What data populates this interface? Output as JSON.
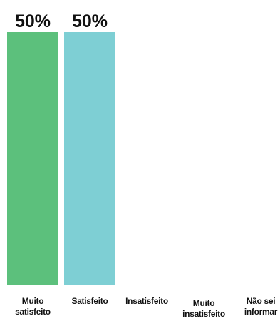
{
  "chart_data": {
    "type": "bar",
    "categories": [
      "Muito satisfeito",
      "Satisfeito",
      "Insatisfeito",
      "Muito insatisfeito",
      "Não sei informar"
    ],
    "values": [
      50,
      50,
      0,
      0,
      0
    ],
    "value_labels": [
      "50%",
      "50%",
      null,
      null,
      null
    ],
    "colors": [
      "#5cc07c",
      "#7ecfd4",
      "#5cc07c",
      "#5cc07c",
      "#5cc07c"
    ],
    "ylim": [
      0,
      50
    ]
  }
}
